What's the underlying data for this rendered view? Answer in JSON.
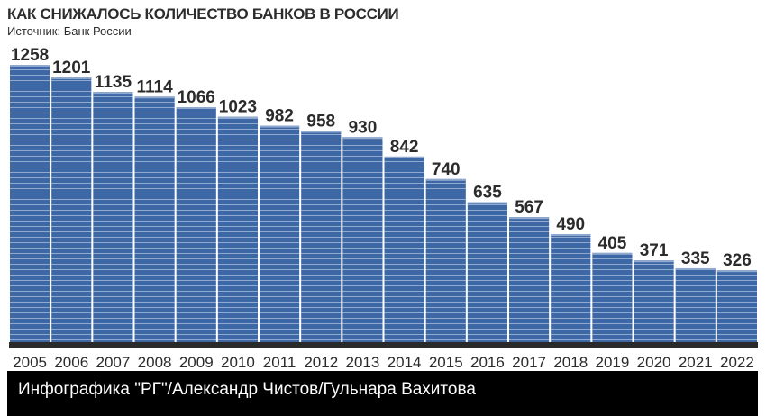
{
  "chart_data": {
    "type": "bar",
    "title": "КАК СНИЖАЛОСЬ КОЛИЧЕСТВО БАНКОВ В РОССИИ",
    "subtitle": "Источник: Банк России",
    "categories": [
      "2005",
      "2006",
      "2007",
      "2008",
      "2009",
      "2010",
      "2011",
      "2012",
      "2013",
      "2014",
      "2015",
      "2016",
      "2017",
      "2018",
      "2019",
      "2020",
      "2021",
      "2022"
    ],
    "values": [
      1258,
      1201,
      1135,
      1114,
      1066,
      1023,
      982,
      958,
      930,
      842,
      740,
      635,
      567,
      490,
      405,
      371,
      335,
      326
    ],
    "ylim": [
      0,
      1258
    ],
    "grid": false,
    "colors": {
      "bar": "#3e67a5",
      "stripe": "#8fa9cf",
      "base": "#2a2a2a",
      "label": "#2b2b2b"
    }
  },
  "footer": {
    "credit": "Инфографика \"РГ\"/Александр Чистов/Гульнара Вахитова"
  }
}
